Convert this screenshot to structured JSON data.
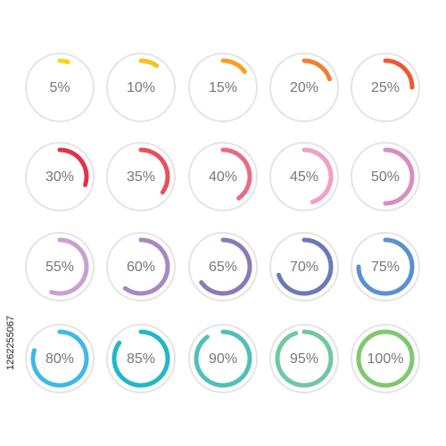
{
  "chart_data": {
    "type": "gauge",
    "values": [
      5,
      10,
      15,
      20,
      25,
      30,
      35,
      40,
      45,
      50,
      55,
      60,
      65,
      70,
      75,
      80,
      85,
      90,
      95,
      100
    ],
    "value_labels": [
      "5%",
      "10%",
      "15%",
      "20%",
      "25%",
      "30%",
      "35%",
      "40%",
      "45%",
      "50%",
      "55%",
      "60%",
      "65%",
      "70%",
      "75%",
      "80%",
      "85%",
      "90%",
      "95%",
      "100%"
    ],
    "colors": [
      "#f7d51d",
      "#f7c21c",
      "#f5a021",
      "#f08030",
      "#ec5a35",
      "#e3314a",
      "#e8505e",
      "#ec6a80",
      "#f0a0c4",
      "#d98cc0",
      "#c8a0d0",
      "#a888c0",
      "#8a7ab8",
      "#6a7ab8",
      "#5a90d0",
      "#40b8e8",
      "#20b8c8",
      "#50c0b8",
      "#70c8a0",
      "#80c870"
    ],
    "ylim": [
      0,
      100
    ],
    "annotation": "1262255067"
  }
}
